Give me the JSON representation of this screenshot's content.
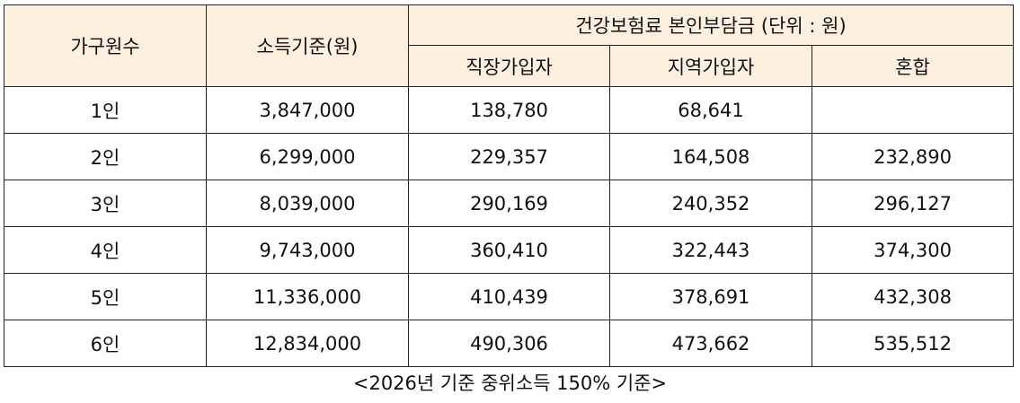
{
  "table": {
    "header": {
      "household": "가구원수",
      "income": "소득기준(원)",
      "premium": "건강보험료 본인부담금 (단위 : 원)",
      "sub": [
        "직장가입자",
        "지역가입자",
        "혼합"
      ]
    },
    "rows": [
      [
        "1인",
        "3,847,000",
        "138,780",
        "68,641",
        null
      ],
      [
        "2인",
        "6,299,000",
        "229,357",
        "164,508",
        "232,890"
      ],
      [
        "3인",
        "8,039,000",
        "290,169",
        "240,352",
        "296,127"
      ],
      [
        "4인",
        "9,743,000",
        "360,410",
        "322,443",
        "374,300"
      ],
      [
        "5인",
        "11,336,000",
        "410,439",
        "378,691",
        "432,308"
      ],
      [
        "6인",
        "12,834,000",
        "490,306",
        "473,662",
        "535,512"
      ]
    ]
  },
  "caption": "<2026년 기준 중위소득 150% 기준>"
}
